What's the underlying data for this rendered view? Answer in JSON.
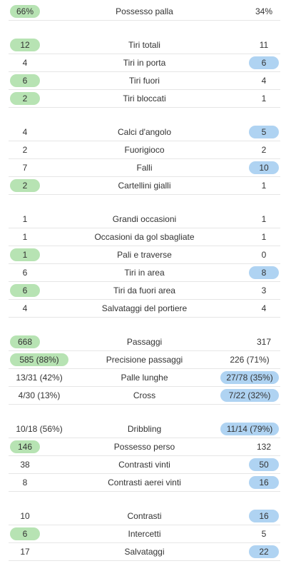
{
  "groups": [
    {
      "rows": [
        {
          "label": "Possesso palla",
          "home": "66%",
          "away": "34%",
          "hl": "home"
        }
      ]
    },
    {
      "rows": [
        {
          "label": "Tiri totali",
          "home": "12",
          "away": "11",
          "hl": "home"
        },
        {
          "label": "Tiri in porta",
          "home": "4",
          "away": "6",
          "hl": "away"
        },
        {
          "label": "Tiri fuori",
          "home": "6",
          "away": "4",
          "hl": "home"
        },
        {
          "label": "Tiri bloccati",
          "home": "2",
          "away": "1",
          "hl": "home"
        }
      ]
    },
    {
      "rows": [
        {
          "label": "Calci d'angolo",
          "home": "4",
          "away": "5",
          "hl": "away"
        },
        {
          "label": "Fuorigioco",
          "home": "2",
          "away": "2",
          "hl": "none"
        },
        {
          "label": "Falli",
          "home": "7",
          "away": "10",
          "hl": "away"
        },
        {
          "label": "Cartellini gialli",
          "home": "2",
          "away": "1",
          "hl": "home"
        }
      ]
    },
    {
      "rows": [
        {
          "label": "Grandi occasioni",
          "home": "1",
          "away": "1",
          "hl": "none"
        },
        {
          "label": "Occasioni da gol sbagliate",
          "home": "1",
          "away": "1",
          "hl": "none"
        },
        {
          "label": "Pali e traverse",
          "home": "1",
          "away": "0",
          "hl": "home"
        },
        {
          "label": "Tiri in area",
          "home": "6",
          "away": "8",
          "hl": "away"
        },
        {
          "label": "Tiri da fuori area",
          "home": "6",
          "away": "3",
          "hl": "home"
        },
        {
          "label": "Salvataggi del portiere",
          "home": "4",
          "away": "4",
          "hl": "none"
        }
      ]
    },
    {
      "rows": [
        {
          "label": "Passaggi",
          "home": "668",
          "away": "317",
          "hl": "home"
        },
        {
          "label": "Precisione passaggi",
          "home": "585 (88%)",
          "away": "226 (71%)",
          "hl": "home"
        },
        {
          "label": "Palle lunghe",
          "home": "13/31 (42%)",
          "away": "27/78 (35%)",
          "hl": "away"
        },
        {
          "label": "Cross",
          "home": "4/30 (13%)",
          "away": "7/22 (32%)",
          "hl": "away"
        }
      ]
    },
    {
      "rows": [
        {
          "label": "Dribbling",
          "home": "10/18 (56%)",
          "away": "11/14 (79%)",
          "hl": "away"
        },
        {
          "label": "Possesso perso",
          "home": "146",
          "away": "132",
          "hl": "home"
        },
        {
          "label": "Contrasti vinti",
          "home": "38",
          "away": "50",
          "hl": "away"
        },
        {
          "label": "Contrasti aerei vinti",
          "home": "8",
          "away": "16",
          "hl": "away"
        }
      ]
    },
    {
      "rows": [
        {
          "label": "Contrasti",
          "home": "10",
          "away": "16",
          "hl": "away"
        },
        {
          "label": "Intercetti",
          "home": "6",
          "away": "5",
          "hl": "home"
        },
        {
          "label": "Salvataggi",
          "home": "17",
          "away": "22",
          "hl": "away"
        }
      ]
    }
  ],
  "colors": {
    "home_highlight": "#b7e3b3",
    "away_highlight": "#afd3f2",
    "divider": "#e6e6e6"
  }
}
